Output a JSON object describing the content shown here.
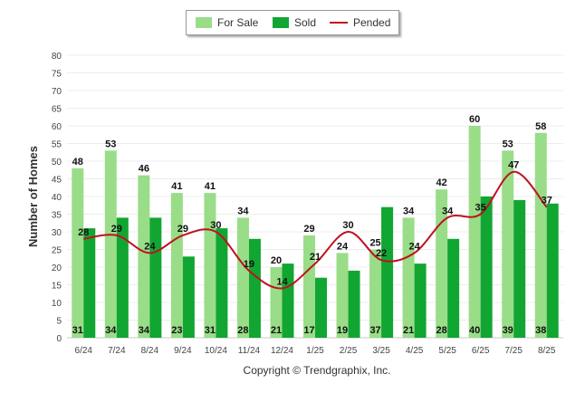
{
  "legend": {
    "for_sale": "For Sale",
    "sold": "Sold",
    "pended": "Pended"
  },
  "copyright": "Copyright © Trendgraphix, Inc.",
  "chart_data": {
    "type": "bar",
    "ylabel": "Number of Homes",
    "ylim": [
      0,
      80
    ],
    "yticks": [
      0,
      5,
      10,
      15,
      20,
      25,
      30,
      35,
      40,
      45,
      50,
      55,
      60,
      65,
      70,
      75,
      80
    ],
    "categories": [
      "6/24",
      "7/24",
      "8/24",
      "9/24",
      "10/24",
      "11/24",
      "12/24",
      "1/25",
      "2/25",
      "3/25",
      "4/25",
      "5/25",
      "6/25",
      "7/25",
      "8/25"
    ],
    "series": [
      {
        "name": "For Sale",
        "type": "bar",
        "color": "#99dd88",
        "values": [
          48,
          53,
          46,
          41,
          41,
          34,
          20,
          29,
          24,
          25,
          34,
          42,
          60,
          53,
          58
        ]
      },
      {
        "name": "Sold",
        "type": "bar",
        "color": "#11a632",
        "values": [
          31,
          34,
          34,
          23,
          31,
          28,
          21,
          17,
          19,
          37,
          21,
          28,
          40,
          39,
          38
        ]
      },
      {
        "name": "Pended",
        "type": "line",
        "color": "#c0111f",
        "values": [
          28,
          29,
          24,
          29,
          30,
          19,
          14,
          21,
          30,
          22,
          24,
          34,
          35,
          47,
          37
        ]
      }
    ],
    "grid": true,
    "legend_position": "top-center"
  }
}
